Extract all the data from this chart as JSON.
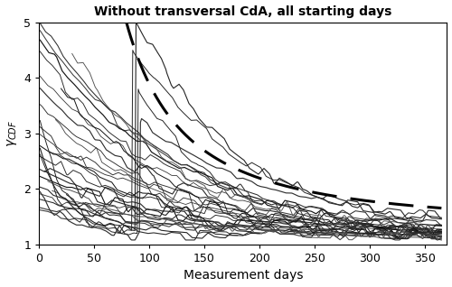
{
  "title": "Without transversal CdA, all starting days",
  "xlabel": "Measurement days",
  "ylabel": "gamma_CDF",
  "xlim": [
    0,
    370
  ],
  "ylim": [
    1,
    5
  ],
  "yticks": [
    1,
    2,
    3,
    4,
    5
  ],
  "xticks": [
    0,
    50,
    100,
    150,
    200,
    250,
    300,
    350
  ],
  "background_color": "#ffffff",
  "dashed_color": "#000000",
  "max_days": 365,
  "seed": 7
}
